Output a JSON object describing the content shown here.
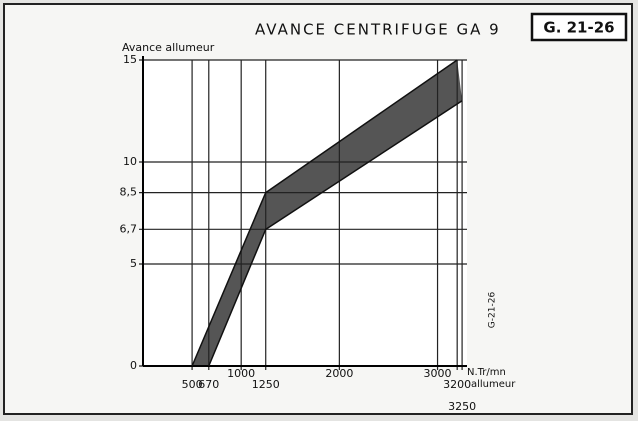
{
  "chart_data": {
    "type": "band",
    "title": "AVANCE CENTRIFUGE GA 9",
    "reference": "G. 21-26",
    "side_label": "G-21-26",
    "y_label": "Avance allumeur",
    "x_label": [
      "N.Tr/mn",
      "allumeur"
    ],
    "xlim": [
      0,
      3300
    ],
    "ylim": [
      0,
      15
    ],
    "xticks": [
      500,
      670,
      1000,
      1250,
      2000,
      3000,
      3200,
      3250
    ],
    "yticks": [
      0,
      5,
      {
        "value": 6.7,
        "label": "6,7"
      },
      {
        "value": 8.5,
        "label": "8,5"
      },
      10,
      15
    ],
    "grid": true,
    "color": "#555555",
    "series": [
      {
        "name": "upper",
        "x": [
          500,
          1250,
          3200
        ],
        "values": [
          0,
          8.5,
          15
        ]
      },
      {
        "name": "lower",
        "x": [
          670,
          1250,
          3250
        ],
        "values": [
          0,
          6.7,
          13
        ]
      }
    ]
  }
}
